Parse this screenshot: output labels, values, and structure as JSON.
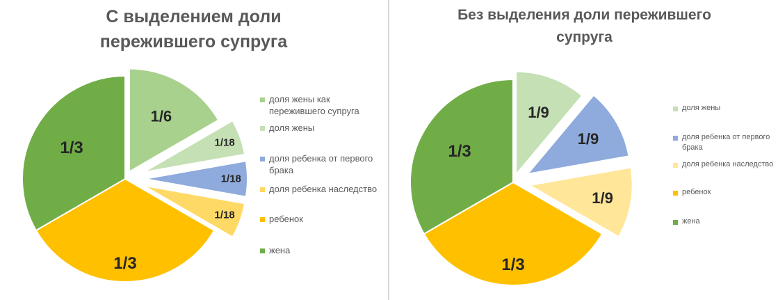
{
  "chart_data": [
    {
      "type": "pie",
      "title": "С выделением доли пережившего супруга",
      "title_lines": [
        "С выделением доли",
        "пережившего супруга"
      ],
      "legend_placement": "right",
      "slices": [
        {
          "name": "доля жены как пережившего супруга",
          "name_lines": [
            "доля жены как",
            "пережившего супруга"
          ],
          "value": 0.16667,
          "label": "1/6",
          "color": "#a9d18e"
        },
        {
          "name": "доля жены",
          "name_lines": [
            "доля жены"
          ],
          "value": 0.05556,
          "label": "1/18",
          "color": "#c5e0b4"
        },
        {
          "name": "доля ребенка от первого брака",
          "name_lines": [
            "доля ребенка от первого",
            "брака"
          ],
          "value": 0.05556,
          "label": "1/18",
          "color": "#8faadc"
        },
        {
          "name": "доля ребенка наследство",
          "name_lines": [
            "доля ребенка наследство"
          ],
          "value": 0.05556,
          "label": "1/18",
          "color": "#ffd966"
        },
        {
          "name": "ребенок",
          "name_lines": [
            "ребенок"
          ],
          "value": 0.33333,
          "label": "1/3",
          "color": "#ffc000"
        },
        {
          "name": "жена",
          "name_lines": [
            "жена"
          ],
          "value": 0.33333,
          "label": "1/3",
          "color": "#70ad47"
        }
      ]
    },
    {
      "type": "pie",
      "title": "Без выделения доли пережившего супруга",
      "title_lines": [
        "Без выделения доли пережившего",
        "супруга"
      ],
      "legend_placement": "right",
      "slices": [
        {
          "name": "доля жены",
          "name_lines": [
            "доля жены"
          ],
          "value": 0.11111,
          "label": "1/9",
          "color": "#c5e0b4"
        },
        {
          "name": "доля ребенка от первого брака",
          "name_lines": [
            "доля ребенка от первого",
            "брака"
          ],
          "value": 0.11111,
          "label": "1/9",
          "color": "#8faadc"
        },
        {
          "name": "доля ребенка наследство",
          "name_lines": [
            "доля ребенка наследство"
          ],
          "value": 0.11111,
          "label": "1/9",
          "color": "#ffe699"
        },
        {
          "name": "ребенок",
          "name_lines": [
            "ребенок"
          ],
          "value": 0.33333,
          "label": "1/3",
          "color": "#ffc000"
        },
        {
          "name": "жена",
          "name_lines": [
            "жена"
          ],
          "value": 0.33333,
          "label": "1/3",
          "color": "#70ad47"
        }
      ]
    }
  ]
}
